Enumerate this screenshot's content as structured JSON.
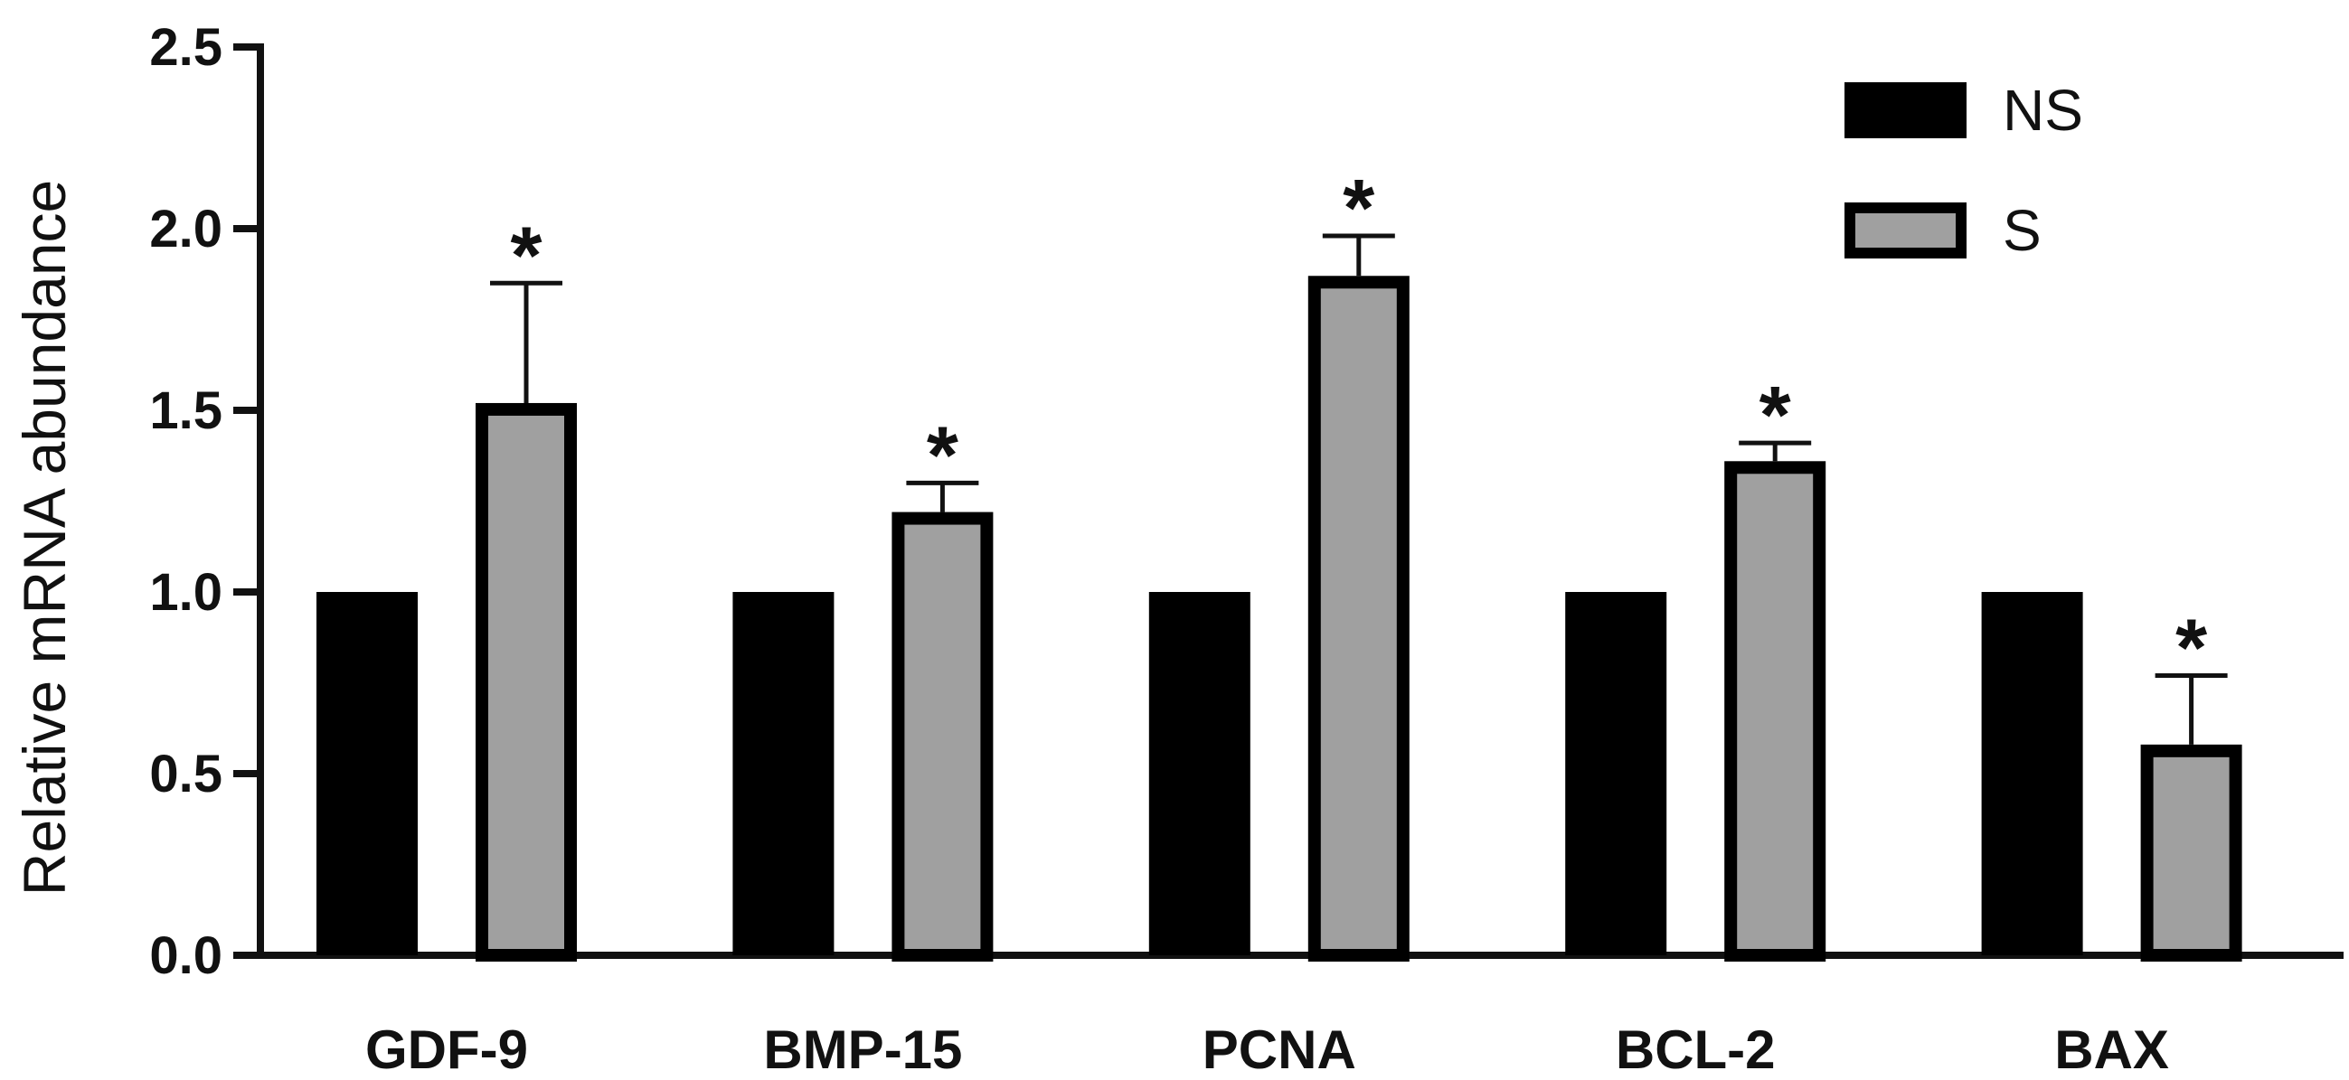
{
  "chart_data": {
    "type": "bar",
    "title": "",
    "xlabel": "",
    "ylabel": "Relative mRNA abundance",
    "ylim": [
      0,
      2.5
    ],
    "yticks": [
      "0.0",
      "0.5",
      "1.0",
      "1.5",
      "2.0",
      "2.5"
    ],
    "categories": [
      "GDF-9",
      "BMP-15",
      "PCNA",
      "BCL-2",
      "BAX"
    ],
    "series": [
      {
        "name": "NS",
        "color": "#000000",
        "values": [
          1.0,
          1.0,
          1.0,
          1.0,
          1.0
        ],
        "errors": [
          0,
          0,
          0,
          0,
          0
        ]
      },
      {
        "name": "S",
        "color": "#a0a0a0",
        "values": [
          1.52,
          1.22,
          1.87,
          1.36,
          0.58
        ],
        "errors": [
          0.33,
          0.08,
          0.11,
          0.05,
          0.19
        ]
      }
    ],
    "significance": [
      "*",
      "*",
      "*",
      "*",
      "*"
    ],
    "legend_position": "top-right",
    "grid": false
  }
}
